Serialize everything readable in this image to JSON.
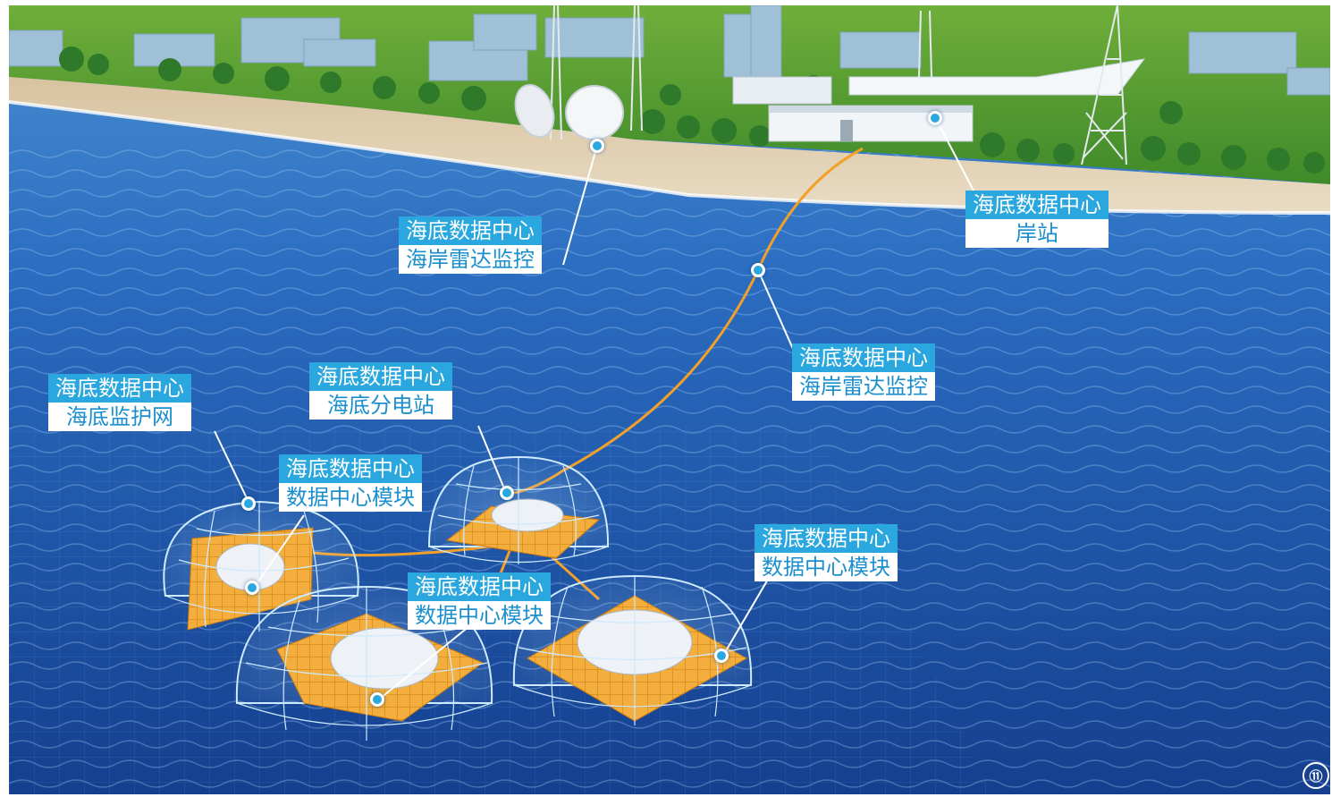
{
  "labels": {
    "radar_shore": {
      "title": "海底数据中心",
      "subtitle": "海岸雷达监控"
    },
    "shore_station": {
      "title": "海底数据中心",
      "subtitle": "岸站"
    },
    "radar_sea": {
      "title": "海底数据中心",
      "subtitle": "海岸雷达监控"
    },
    "protection_net": {
      "title": "海底数据中心",
      "subtitle": "海底监护网"
    },
    "substation": {
      "title": "海底数据中心",
      "subtitle": "海底分电站"
    },
    "module_left": {
      "title": "海底数据中心",
      "subtitle": "数据中心模块"
    },
    "module_center": {
      "title": "海底数据中心",
      "subtitle": "数据中心模块"
    },
    "module_right": {
      "title": "海底数据中心",
      "subtitle": "数据中心模块"
    }
  },
  "figure_number": "⑪",
  "colors": {
    "label_blue": "#2aa7de",
    "label_text_blue": "#1b8fce",
    "cable_orange": "#f2a02a",
    "sea_blue": "#1f5fb0",
    "platform_orange": "#f2a93b"
  }
}
